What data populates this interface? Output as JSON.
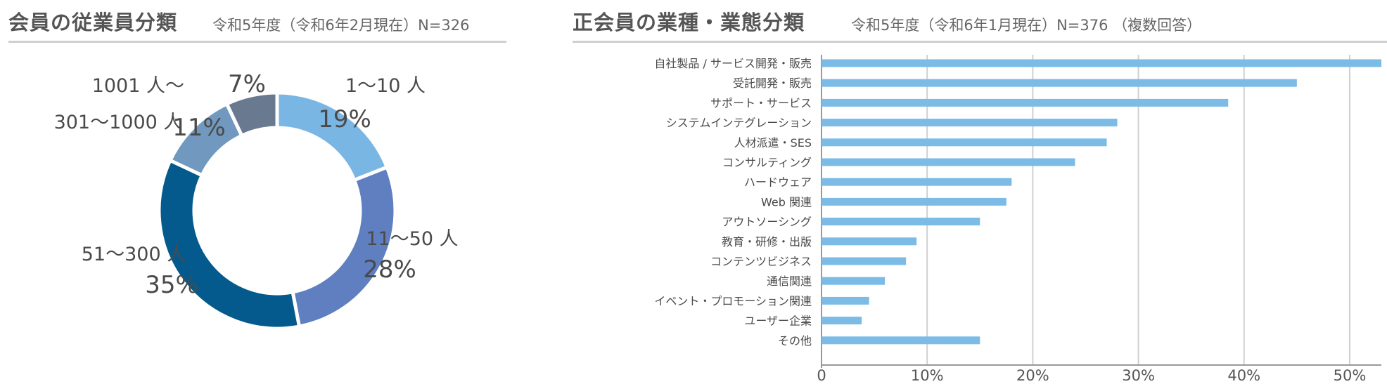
{
  "left": {
    "title": "会員の従業員分類",
    "subtitle": "令和5年度（令和6年2月現在）N=326"
  },
  "right": {
    "title": "正会員の業種・業態分類",
    "subtitle": "令和5年度（令和6年1月現在）N=376 （複数回答）"
  },
  "colors": {
    "bar": "#7bbbe6",
    "grid": "#d0d0d0",
    "text": "#4a4a4a"
  },
  "chart_data": [
    {
      "type": "pie",
      "donut": true,
      "categories": [
        "1～10 人",
        "11～50 人",
        "51～300 人",
        "301～1000 人",
        "1001 人～"
      ],
      "values": [
        19,
        28,
        35,
        11,
        7
      ],
      "value_labels": [
        "19%",
        "28%",
        "35%",
        "11%",
        "7%"
      ],
      "colors": [
        "#7ab6e4",
        "#5f7fc0",
        "#045a8d",
        "#7199bf",
        "#69798f"
      ]
    },
    {
      "type": "bar",
      "orientation": "horizontal",
      "categories": [
        "自社製品 / サービス開発・販売",
        "受託開発・販売",
        "サポート・サービス",
        "システムインテグレーション",
        "人材派遣・SES",
        "コンサルティング",
        "ハードウェア",
        "Web 関連",
        "アウトソーシング",
        "教育・研修・出版",
        "コンテンツビジネス",
        "通信関連",
        "イベント・プロモーション関連",
        "ユーザー企業",
        "その他"
      ],
      "values": [
        53,
        45,
        38.5,
        28,
        27,
        24,
        18,
        17.5,
        15,
        9,
        8,
        6,
        4.5,
        3.8,
        15
      ],
      "xlim": [
        0,
        53
      ],
      "xticks": [
        0,
        10,
        20,
        30,
        40,
        50
      ],
      "xtick_labels": [
        "0",
        "10%",
        "20%",
        "30%",
        "40%",
        "50%"
      ],
      "grid": true
    }
  ]
}
